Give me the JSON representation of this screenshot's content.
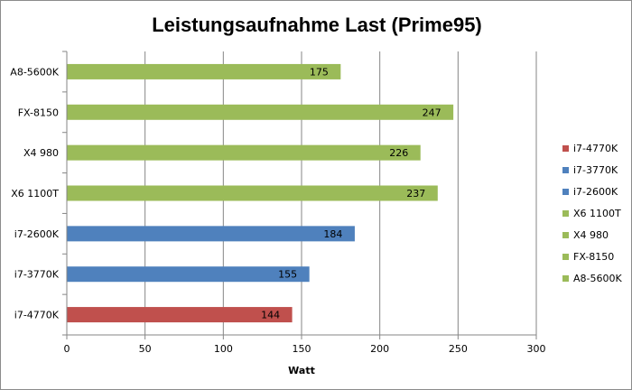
{
  "chart_data": {
    "type": "bar",
    "orientation": "horizontal",
    "title": "Leistungsaufnahme Last (Prime95)",
    "xlabel": "Watt",
    "ylabel": "",
    "xlim": [
      0,
      300
    ],
    "xticks": [
      0,
      50,
      100,
      150,
      200,
      250,
      300
    ],
    "grid": "vertical",
    "legend_position": "right",
    "categories": [
      "A8-5600K",
      "FX-8150",
      "X4 980",
      "X6 1100T",
      "i7-2600K",
      "i7-3770K",
      "i7-4770K"
    ],
    "values": [
      175,
      247,
      226,
      237,
      184,
      155,
      144
    ],
    "bar_colors": [
      "#9bbb59",
      "#9bbb59",
      "#9bbb59",
      "#9bbb59",
      "#4f81bd",
      "#4f81bd",
      "#c0504d"
    ],
    "legend": [
      {
        "label": "i7-4770K",
        "color": "#c0504d"
      },
      {
        "label": "i7-3770K",
        "color": "#4f81bd"
      },
      {
        "label": "i7-2600K",
        "color": "#4f81bd"
      },
      {
        "label": "X6 1100T",
        "color": "#9bbb59"
      },
      {
        "label": "X4 980",
        "color": "#9bbb59"
      },
      {
        "label": "FX-8150",
        "color": "#9bbb59"
      },
      {
        "label": "A8-5600K",
        "color": "#9bbb59"
      }
    ]
  }
}
